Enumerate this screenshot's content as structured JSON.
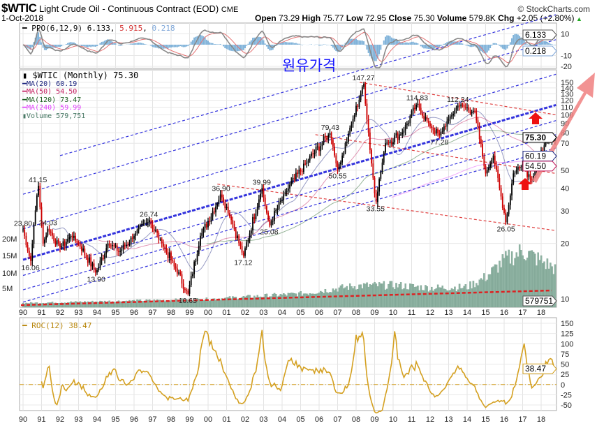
{
  "header": {
    "symbol": "$WTIC",
    "name": "Light Crude Oil - Continuous Contract (EOD)",
    "exchange": "CME",
    "date": "1-Oct-2018",
    "credit": "© StockCharts.com",
    "open_label": "Open",
    "open": "73.29",
    "high_label": "High",
    "high": "75.77",
    "low_label": "Low",
    "low": "72.95",
    "close_label": "Close",
    "close": "75.30",
    "volume_label": "Volume",
    "volume": "579.8K",
    "chg_label": "Chg",
    "chg": "+2.05 (+2.80%)"
  },
  "annotation_text": "원유가격",
  "colors": {
    "up": "#000000",
    "down": "#cc0000",
    "ma20": "#1a237e",
    "ma50": "#c2185b",
    "ma120": "#1b5e20",
    "ma240": "#e040fb",
    "volume": "#8fb3a3",
    "roc": "#d4a020",
    "ppo": "#888888",
    "ppo_signal": "#e57373",
    "ppo_hist": "#7fb2d9",
    "channel_blue": "#3333dd",
    "channel_red": "#e04040",
    "arrow": "#f08080"
  },
  "chart_data": [
    {
      "type": "line",
      "panel": "PPO",
      "legend": {
        "name": "PPO(6,12,9)",
        "ppo": "6.133",
        "signal": "5.915",
        "hist": "0.218"
      },
      "yticks": [
        10,
        -10,
        -20
      ],
      "ylim": [
        -25,
        13
      ],
      "tags": [
        "6.133",
        "0.218"
      ]
    },
    {
      "type": "ohlc",
      "panel": "price",
      "scale": "log",
      "title": "$WTIC (Monthly) 75.30",
      "legend": [
        "MA(20) 60.19",
        "MA(50) 54.50",
        "MA(120) 73.47",
        "MA(240) 59.99",
        "Volume 579,751"
      ],
      "yticks": [
        150,
        140,
        130,
        120,
        110,
        100,
        90,
        80,
        70,
        50,
        40,
        30,
        20,
        10
      ],
      "volume_ticks": [
        "20M",
        "15M",
        "10M",
        "5M"
      ],
      "xticks": [
        "90",
        "91",
        "92",
        "93",
        "94",
        "95",
        "96",
        "97",
        "98",
        "99",
        "00",
        "01",
        "02",
        "03",
        "04",
        "05",
        "06",
        "07",
        "08",
        "09",
        "10",
        "11",
        "12",
        "13",
        "14",
        "15",
        "16",
        "17",
        "18"
      ],
      "anchors": [
        [
          1990.0,
          23.8,
          "23.80",
          "above"
        ],
        [
          1990.4,
          16.06,
          "16.06",
          "below"
        ],
        [
          1990.8,
          41.15,
          "41.15",
          "above"
        ],
        [
          1991.1,
          20
        ],
        [
          1991.35,
          24.03,
          "24.03",
          "above"
        ],
        [
          1992.0,
          19
        ],
        [
          1992.6,
          22
        ],
        [
          1993.0,
          20
        ],
        [
          1993.95,
          13.9,
          "13.90",
          "below"
        ],
        [
          1994.6,
          20
        ],
        [
          1995.2,
          18
        ],
        [
          1996.0,
          22
        ],
        [
          1996.8,
          26.74,
          "26.74",
          "above"
        ],
        [
          1997.5,
          20
        ],
        [
          1998.2,
          15
        ],
        [
          1998.9,
          10.65,
          "10.65",
          "below"
        ],
        [
          1999.6,
          22
        ],
        [
          2000.7,
          36.9,
          "36.90",
          "above"
        ],
        [
          2001.2,
          28
        ],
        [
          2001.9,
          17.12,
          "17.12",
          "below"
        ],
        [
          2002.9,
          39.99,
          "39.99",
          "above"
        ],
        [
          2003.3,
          25.08,
          "25.08",
          "below"
        ],
        [
          2004.2,
          38
        ],
        [
          2005.3,
          55
        ],
        [
          2006.6,
          79.43,
          "79.43",
          "above"
        ],
        [
          2007.0,
          50.55,
          "50.55",
          "below"
        ],
        [
          2007.7,
          85
        ],
        [
          2008.4,
          147.27,
          "147.27",
          "above"
        ],
        [
          2009.05,
          33.55,
          "33.55",
          "below"
        ],
        [
          2009.6,
          70
        ],
        [
          2010.5,
          80
        ],
        [
          2011.3,
          114.83,
          "114.83",
          "above"
        ],
        [
          2011.9,
          90
        ],
        [
          2012.5,
          77.28,
          "77.28",
          "below"
        ],
        [
          2013.0,
          95
        ],
        [
          2013.5,
          112.24,
          "112.24",
          "above"
        ],
        [
          2014.4,
          105
        ],
        [
          2015.0,
          48
        ],
        [
          2015.4,
          60
        ],
        [
          2016.1,
          26.05,
          "26.05",
          "below"
        ],
        [
          2016.5,
          48
        ],
        [
          2017.0,
          54
        ],
        [
          2017.5,
          44
        ],
        [
          2018.0,
          64
        ],
        [
          2018.75,
          75.3
        ]
      ],
      "volume_k_by_year": [
        [
          1990,
          60
        ],
        [
          1995,
          90
        ],
        [
          2000,
          120
        ],
        [
          2005,
          200
        ],
        [
          2008,
          320
        ],
        [
          2010,
          330
        ],
        [
          2012,
          290
        ],
        [
          2014,
          300
        ],
        [
          2015,
          450
        ],
        [
          2016,
          700
        ],
        [
          2017,
          850
        ],
        [
          2018.75,
          580
        ]
      ],
      "trendlines_blue": [
        [
          1990.0,
          37,
          2018.8,
          256
        ],
        [
          1990.0,
          24,
          2018.8,
          166
        ],
        [
          1990.0,
          16.3,
          2018.8,
          113,
          "thick"
        ],
        [
          1990.0,
          13.4,
          2018.8,
          93
        ],
        [
          1990.0,
          11.2,
          2018.8,
          78
        ],
        [
          1990.0,
          9.6,
          2018.8,
          66
        ],
        [
          1992.0,
          60,
          2018.8,
          350
        ]
      ],
      "trendlines_red": [
        [
          2008.2,
          150,
          2018.8,
          100
        ],
        [
          2005.8,
          78,
          2018.8,
          48
        ],
        [
          2000.5,
          42,
          2018.8,
          23.5
        ]
      ],
      "tags": {
        "close": "75.30",
        "ma20": "60.19",
        "ma50": "54.50",
        "volume": "579751"
      }
    },
    {
      "type": "line",
      "panel": "ROC",
      "legend": "ROC(12) 38.47",
      "yticks": [
        150,
        125,
        100,
        75,
        50,
        25,
        0,
        -25,
        -50
      ],
      "ylim": [
        -60,
        160
      ],
      "tag": "38.47",
      "xticks": [
        "90",
        "91",
        "92",
        "93",
        "94",
        "95",
        "96",
        "97",
        "98",
        "99",
        "00",
        "01",
        "02",
        "03",
        "04",
        "05",
        "06",
        "07",
        "08",
        "09",
        "10",
        "11",
        "12",
        "13",
        "14",
        "15",
        "16",
        "17",
        "18"
      ]
    }
  ]
}
